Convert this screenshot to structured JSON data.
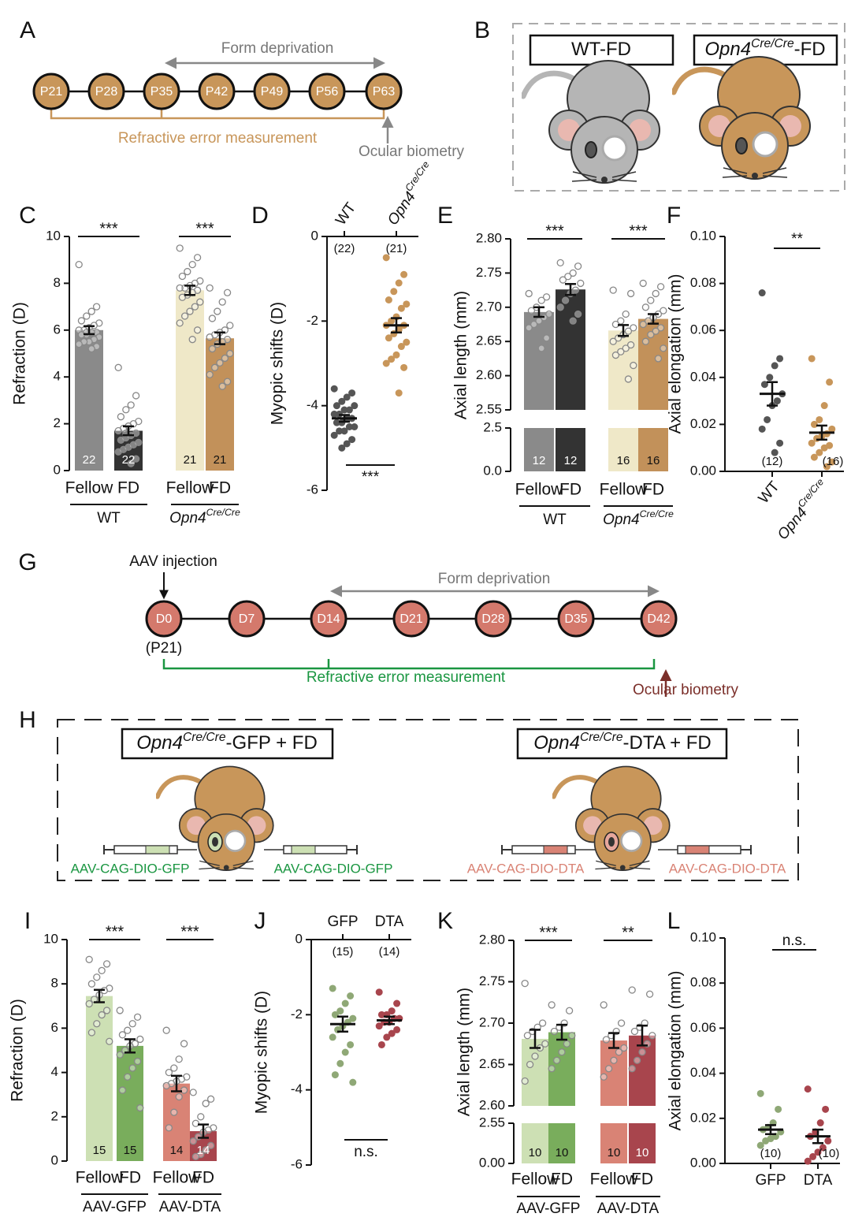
{
  "panel_labels": [
    "A",
    "B",
    "C",
    "D",
    "E",
    "F",
    "G",
    "H",
    "I",
    "J",
    "K",
    "L"
  ],
  "timeline_a": {
    "days": [
      "P21",
      "P28",
      "P35",
      "P42",
      "P49",
      "P56",
      "P63"
    ],
    "form_deprivation": "Form deprivation",
    "refractive_error": "Refractive error measurement",
    "biometry": "Ocular biometry"
  },
  "schematic_b": {
    "labels": [
      {
        "text": "WT-FD"
      },
      {
        "text": "Opn4",
        "sup": "Cre/Cre",
        "tail": "-FD"
      }
    ]
  },
  "timeline_g": {
    "injection": "AAV injection",
    "days": [
      "D0",
      "D7",
      "D14",
      "D21",
      "D28",
      "D35",
      "D42"
    ],
    "start_age": "(P21)",
    "form_deprivation": "Form deprivation",
    "refractive_error": "Refractive error measurement",
    "biometry": "Ocular biometry"
  },
  "schematic_h": {
    "labels": [
      {
        "text": "Opn4",
        "sup": "Cre/Cre",
        "tail": "-GFP + FD"
      },
      {
        "text": "Opn4",
        "sup": "Cre/Cre",
        "tail": "-DTA + FD"
      }
    ],
    "vectors": [
      "AAV-CAG-DIO-GFP",
      "AAV-CAG-DIO-GFP",
      "AAV-CAG-DIO-DTA",
      "AAV-CAG-DIO-DTA"
    ]
  },
  "chart_data": [
    {
      "type": "bar",
      "ylabel": "Refraction (D)",
      "ylim": [
        0,
        10
      ],
      "yticks": [
        0,
        2,
        4,
        6,
        8,
        10
      ],
      "categories": [
        "Fellow",
        "FD",
        "Fellow",
        "FD"
      ],
      "groups": [
        {
          "text": "WT"
        },
        {
          "text": "Opn4",
          "sup": "Cre/Cre"
        }
      ],
      "colors": [
        "#8a8a8a",
        "#333333",
        "#efe8c8",
        "#c2915a"
      ],
      "values": [
        6.0,
        1.7,
        7.7,
        5.65
      ],
      "errors": [
        0.17,
        0.19,
        0.2,
        0.25
      ],
      "n_labels": [
        "22",
        "22",
        "21",
        "21"
      ],
      "significance": [
        "***",
        "***"
      ],
      "points": [
        [
          8.8,
          7.0,
          6.8,
          6.6,
          6.4,
          6.3,
          6.2,
          6.1,
          6.0,
          6.0,
          5.9,
          5.9,
          5.8,
          5.8,
          5.7,
          5.6,
          5.5,
          5.5,
          5.4,
          5.3,
          5.2,
          5.9
        ],
        [
          4.4,
          3.2,
          2.8,
          2.6,
          2.3,
          2.1,
          2.0,
          1.9,
          1.8,
          1.7,
          1.6,
          1.5,
          1.4,
          1.3,
          1.2,
          1.1,
          1.0,
          0.9,
          0.8,
          0.5,
          0.3,
          1.6
        ],
        [
          9.5,
          9.1,
          8.8,
          8.5,
          8.3,
          8.1,
          8.0,
          7.9,
          7.8,
          7.8,
          7.7,
          7.6,
          7.5,
          7.4,
          7.2,
          7.0,
          6.8,
          6.6,
          6.3,
          6.0,
          5.6
        ],
        [
          7.8,
          7.6,
          7.2,
          6.8,
          6.5,
          6.2,
          6.0,
          5.9,
          5.8,
          5.7,
          5.6,
          5.5,
          5.4,
          5.2,
          5.0,
          4.8,
          4.6,
          4.4,
          4.1,
          3.8,
          3.6
        ]
      ]
    },
    {
      "type": "strip",
      "ylabel": "Myopic shifts (D)",
      "ylim": [
        -6,
        0
      ],
      "yticks": [
        -6,
        -4,
        -2,
        0
      ],
      "axis_position": "top",
      "rotate_labels": true,
      "category_labels": [
        {
          "text": "WT"
        },
        {
          "text": "Opn4",
          "sup": "Cre/Cre"
        }
      ],
      "colors": [
        "#555555",
        "#c8965a"
      ],
      "values": [
        -4.3,
        -2.1
      ],
      "errors": [
        0.08,
        0.17
      ],
      "n_labels": [
        "(22)",
        "(21)"
      ],
      "significance": "***",
      "points": [
        [
          -3.6,
          -3.7,
          -3.8,
          -3.9,
          -4.0,
          -4.0,
          -4.1,
          -4.1,
          -4.2,
          -4.2,
          -4.3,
          -4.3,
          -4.4,
          -4.4,
          -4.5,
          -4.5,
          -4.6,
          -4.6,
          -4.7,
          -4.8,
          -4.9,
          -5.0
        ],
        [
          -0.5,
          -0.9,
          -1.1,
          -1.3,
          -1.5,
          -1.6,
          -1.7,
          -1.9,
          -2.0,
          -2.1,
          -2.1,
          -2.2,
          -2.3,
          -2.4,
          -2.5,
          -2.6,
          -2.8,
          -2.9,
          -3.0,
          -3.1,
          -3.7
        ]
      ]
    },
    {
      "type": "bar",
      "ylabel": "Axial length (mm)",
      "ylim": [
        2.55,
        2.8
      ],
      "yticks": [
        2.55,
        {
          "value": 2.6,
          "label": "2.60"
        },
        2.65,
        {
          "value": 2.7,
          "label": "2.70"
        },
        2.75,
        {
          "value": 2.8,
          "label": "2.80"
        }
      ],
      "ylim_lower": [
        0,
        2.5
      ],
      "yticks_lower": [
        {
          "value": 0,
          "label": "0.0"
        },
        2.5
      ],
      "categories": [
        "Fellow",
        "FD",
        "Fellow",
        "FD"
      ],
      "groups": [
        {
          "text": "WT"
        },
        {
          "text": "Opn4",
          "sup": "Cre/Cre"
        }
      ],
      "colors": [
        "#8a8a8a",
        "#333333",
        "#efe8c8",
        "#c2915a"
      ],
      "values": [
        2.693,
        2.726,
        2.666,
        2.683
      ],
      "errors": [
        0.007,
        0.008,
        0.008,
        0.007
      ],
      "n_labels": [
        "12",
        "12",
        "16",
        "16"
      ],
      "significance": [
        "***",
        "***"
      ],
      "points": [
        [
          2.72,
          2.715,
          2.71,
          2.7,
          2.695,
          2.69,
          2.685,
          2.68,
          2.675,
          2.67,
          2.655,
          2.64
        ],
        [
          2.765,
          2.76,
          2.75,
          2.745,
          2.74,
          2.735,
          2.725,
          2.72,
          2.71,
          2.7,
          2.69,
          2.68
        ],
        [
          2.725,
          2.72,
          2.69,
          2.68,
          2.675,
          2.67,
          2.665,
          2.66,
          2.655,
          2.65,
          2.645,
          2.64,
          2.635,
          2.63,
          2.615,
          2.595
        ],
        [
          2.735,
          2.73,
          2.72,
          2.71,
          2.7,
          2.695,
          2.69,
          2.685,
          2.68,
          2.675,
          2.67,
          2.665,
          2.66,
          2.65,
          2.64,
          2.625
        ]
      ]
    },
    {
      "type": "strip",
      "ylabel": "Axial elongation (mm)",
      "ylim": [
        0,
        0.1
      ],
      "yticks": [
        {
          "value": 0,
          "label": "0.00"
        },
        {
          "value": 0.02,
          "label": "0.02"
        },
        {
          "value": 0.04,
          "label": "0.04"
        },
        {
          "value": 0.06,
          "label": "0.06"
        },
        {
          "value": 0.08,
          "label": "0.08"
        },
        {
          "value": 0.1,
          "label": "0.10"
        }
      ],
      "axis_position": "bottom",
      "rotate_labels": true,
      "category_labels": [
        {
          "text": "WT"
        },
        {
          "text": "Opn4",
          "sup": "Cre/Cre"
        }
      ],
      "colors": [
        "#555555",
        "#c8965a"
      ],
      "values": [
        0.033,
        0.0165
      ],
      "errors": [
        0.005,
        0.003
      ],
      "n_labels": [
        "(12)",
        "(16)"
      ],
      "significance": "**",
      "points": [
        [
          0.076,
          0.048,
          0.045,
          0.04,
          0.037,
          0.033,
          0.03,
          0.028,
          0.022,
          0.018,
          0.012,
          0.008
        ],
        [
          0.048,
          0.038,
          0.028,
          0.022,
          0.02,
          0.018,
          0.016,
          0.015,
          0.014,
          0.012,
          0.011,
          0.01,
          0.008,
          0.006,
          0.004,
          0.002
        ]
      ]
    },
    {
      "type": "bar",
      "ylabel": "Refraction (D)",
      "ylim": [
        0,
        10
      ],
      "yticks": [
        0,
        2,
        4,
        6,
        8,
        10
      ],
      "categories": [
        "Fellow",
        "FD",
        "Fellow",
        "FD"
      ],
      "groups": [
        {
          "text": "AAV-GFP"
        },
        {
          "text": "AAV-DTA"
        }
      ],
      "colors": [
        "#cde0b4",
        "#79ad5c",
        "#d98375",
        "#a8454d"
      ],
      "values": [
        7.45,
        5.2,
        3.5,
        1.35
      ],
      "errors": [
        0.28,
        0.3,
        0.35,
        0.3
      ],
      "n_labels": [
        "15",
        "15",
        "14",
        "14"
      ],
      "significance": [
        "***",
        "***"
      ],
      "points": [
        [
          9.1,
          8.9,
          8.6,
          8.3,
          8.0,
          7.8,
          7.7,
          7.5,
          7.3,
          7.1,
          6.8,
          6.6,
          6.2,
          5.8,
          5.4
        ],
        [
          6.8,
          6.5,
          6.2,
          5.9,
          5.7,
          5.5,
          5.3,
          5.2,
          5.0,
          4.8,
          4.5,
          4.2,
          3.8,
          3.2,
          2.4
        ],
        [
          5.9,
          5.3,
          4.6,
          4.2,
          4.0,
          3.8,
          3.7,
          3.6,
          3.5,
          3.4,
          3.2,
          2.9,
          2.2,
          1.5
        ],
        [
          3.1,
          2.8,
          2.6,
          2.0,
          1.7,
          1.5,
          1.4,
          1.3,
          1.1,
          0.9,
          0.7,
          0.5,
          0.3,
          0.2
        ]
      ]
    },
    {
      "type": "strip",
      "ylabel": "Myopic shifts (D)",
      "ylim": [
        -6,
        0
      ],
      "yticks": [
        -6,
        -4,
        -2,
        0
      ],
      "axis_position": "top",
      "rotate_labels": false,
      "category_labels": [
        {
          "text": "GFP"
        },
        {
          "text": "DTA"
        }
      ],
      "colors": [
        "#8fa876",
        "#a8454d"
      ],
      "values": [
        -2.25,
        -2.15
      ],
      "errors": [
        0.2,
        0.1
      ],
      "n_labels": [
        "(15)",
        "(14)"
      ],
      "significance": "n.s.",
      "points": [
        [
          -1.3,
          -1.5,
          -1.7,
          -1.9,
          -2.0,
          -2.1,
          -2.2,
          -2.3,
          -2.4,
          -2.6,
          -2.8,
          -3.0,
          -3.3,
          -3.6,
          -3.8
        ],
        [
          -1.4,
          -1.7,
          -1.9,
          -2.0,
          -2.0,
          -2.1,
          -2.1,
          -2.2,
          -2.2,
          -2.3,
          -2.4,
          -2.5,
          -2.6,
          -2.8
        ]
      ]
    },
    {
      "type": "bar",
      "ylabel": "Axial length (mm)",
      "ylim": [
        2.6,
        2.8
      ],
      "yticks": [
        {
          "value": 2.6,
          "label": "2.60"
        },
        2.65,
        {
          "value": 2.7,
          "label": "2.70"
        },
        2.75,
        {
          "value": 2.8,
          "label": "2.80"
        }
      ],
      "ylim_lower": [
        0,
        2.55
      ],
      "yticks_lower": [
        {
          "value": 0,
          "label": "0.00"
        },
        2.55
      ],
      "categories": [
        "Fellow",
        "FD",
        "Fellow",
        "FD"
      ],
      "groups": [
        {
          "text": "AAV-GFP"
        },
        {
          "text": "AAV-DTA"
        }
      ],
      "colors": [
        "#cde0b4",
        "#79ad5c",
        "#d98375",
        "#a8454d"
      ],
      "values": [
        2.681,
        2.689,
        2.679,
        2.685
      ],
      "errors": [
        0.011,
        0.009,
        0.009,
        0.012
      ],
      "n_labels": [
        "10",
        "10",
        "10",
        "10"
      ],
      "significance": [
        "***",
        "**"
      ],
      "points": [
        [
          2.748,
          2.7,
          2.695,
          2.69,
          2.685,
          2.675,
          2.67,
          2.66,
          2.65,
          2.63
        ],
        [
          2.722,
          2.715,
          2.7,
          2.695,
          2.69,
          2.685,
          2.675,
          2.665,
          2.655,
          2.645
        ],
        [
          2.722,
          2.7,
          2.69,
          2.685,
          2.68,
          2.67,
          2.665,
          2.655,
          2.645,
          2.635
        ],
        [
          2.74,
          2.735,
          2.7,
          2.695,
          2.69,
          2.685,
          2.675,
          2.665,
          2.655,
          2.645
        ]
      ]
    },
    {
      "type": "strip",
      "ylabel": "Axial elongation (mm)",
      "ylim": [
        0,
        0.1
      ],
      "yticks": [
        {
          "value": 0,
          "label": "0.00"
        },
        {
          "value": 0.02,
          "label": "0.02"
        },
        {
          "value": 0.04,
          "label": "0.04"
        },
        {
          "value": 0.06,
          "label": "0.06"
        },
        {
          "value": 0.08,
          "label": "0.08"
        },
        {
          "value": 0.1,
          "label": "0.10"
        }
      ],
      "axis_position": "bottom",
      "rotate_labels": false,
      "category_labels": [
        {
          "text": "GFP"
        },
        {
          "text": "DTA"
        }
      ],
      "colors": [
        "#8fa876",
        "#a8454d"
      ],
      "values": [
        0.015,
        0.012
      ],
      "errors": [
        0.002,
        0.003
      ],
      "n_labels": [
        "(10)",
        "(10)"
      ],
      "significance": "n.s.",
      "points": [
        [
          0.031,
          0.024,
          0.018,
          0.016,
          0.015,
          0.014,
          0.012,
          0.011,
          0.01,
          0.008
        ],
        [
          0.033,
          0.024,
          0.018,
          0.014,
          0.012,
          0.01,
          0.007,
          0.005,
          0.003,
          0.001
        ]
      ]
    }
  ]
}
